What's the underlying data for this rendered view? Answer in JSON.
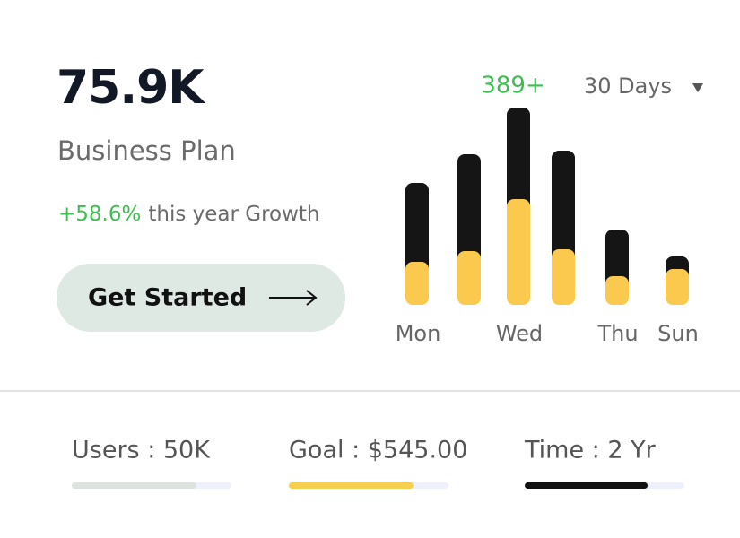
{
  "summary": {
    "value": "75.9K",
    "label": "Business Plan",
    "growth": "+58.6%",
    "growth_text": "this year Growth",
    "button": "Get Started"
  },
  "chart": {
    "type": "bar",
    "badge": "389+",
    "period": "30 Days",
    "categories": [
      "Mon",
      null,
      "Wed",
      null,
      "Thu",
      "Sun"
    ],
    "series": [
      {
        "color": "#fcc94f",
        "values": [
          48,
          60,
          118,
          62,
          32,
          40
        ]
      },
      {
        "color": "#151515",
        "values": [
          88,
          108,
          102,
          110,
          52,
          14
        ]
      }
    ],
    "ylim": [
      0,
      220
    ]
  },
  "stats": [
    {
      "label": "Users : 50K",
      "progress": 0.78,
      "color": "#dde3df"
    },
    {
      "label": "Goal : $545.00",
      "progress": 0.78,
      "color": "#f7cf4e"
    },
    {
      "label": "Time : 2 Yr",
      "progress": 0.77,
      "color": "#121212"
    }
  ]
}
